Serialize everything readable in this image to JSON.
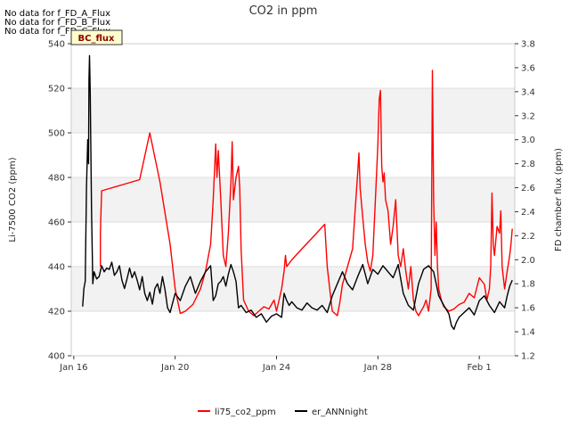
{
  "chart_data": {
    "type": "line",
    "title": "CO2 in ppm",
    "xlabel": "",
    "ylabel": "Li-7500 CO2 (ppm)",
    "y2label": "FD chamber flux (ppm)",
    "xlim": [
      15.9,
      33.4
    ],
    "ylim": [
      400,
      540
    ],
    "y2lim": [
      1.2,
      3.8
    ],
    "x_ticks": [
      16,
      20,
      24,
      28,
      32
    ],
    "x_tick_labels": [
      "Jan 16",
      "Jan 20",
      "Jan 24",
      "Jan 28",
      "Feb 1"
    ],
    "y_ticks": [
      400,
      420,
      440,
      460,
      480,
      500,
      520,
      540
    ],
    "y2_ticks": [
      1.2,
      1.4,
      1.6,
      1.8,
      2.0,
      2.2,
      2.4,
      2.6,
      2.8,
      3.0,
      3.2,
      3.4,
      3.6,
      3.8
    ],
    "y2_tick_labels": [
      "1.2",
      "1.4",
      "1.6",
      "1.8",
      "2.0",
      "2.2",
      "2.4",
      "2.6",
      "2.8",
      "3.0",
      "3.2",
      "3.4",
      "3.6",
      "3.8"
    ],
    "bands": [
      [
        420,
        440
      ],
      [
        460,
        480
      ],
      [
        500,
        520
      ]
    ],
    "no_data_notes": [
      "No data for f_FD_A_Flux",
      "No data for f_FD_B_Flux",
      "No data for f_FD_C_Flux"
    ],
    "badge_label": "BC_flux",
    "legend_position": "bottom-center",
    "series": [
      {
        "name": "li75_co2_ppm",
        "color": "#ff0000",
        "axis": "left",
        "points": [
          [
            17.05,
            440
          ],
          [
            17.05,
            455
          ],
          [
            17.1,
            474
          ],
          [
            18.0,
            477
          ],
          [
            18.6,
            479
          ],
          [
            19.0,
            500
          ],
          [
            19.4,
            478
          ],
          [
            19.8,
            450
          ],
          [
            20.0,
            430
          ],
          [
            20.2,
            419
          ],
          [
            20.4,
            420
          ],
          [
            20.7,
            423
          ],
          [
            21.0,
            430
          ],
          [
            21.2,
            438
          ],
          [
            21.4,
            450
          ],
          [
            21.5,
            470
          ],
          [
            21.6,
            495
          ],
          [
            21.65,
            480
          ],
          [
            21.7,
            492
          ],
          [
            21.8,
            470
          ],
          [
            21.9,
            445
          ],
          [
            22.0,
            440
          ],
          [
            22.1,
            455
          ],
          [
            22.2,
            478
          ],
          [
            22.25,
            496
          ],
          [
            22.3,
            470
          ],
          [
            22.4,
            480
          ],
          [
            22.5,
            485
          ],
          [
            22.55,
            475
          ],
          [
            22.6,
            448
          ],
          [
            22.7,
            425
          ],
          [
            22.9,
            420
          ],
          [
            23.1,
            418
          ],
          [
            23.3,
            420
          ],
          [
            23.5,
            422
          ],
          [
            23.7,
            421
          ],
          [
            23.9,
            425
          ],
          [
            24.0,
            420
          ],
          [
            24.2,
            430
          ],
          [
            24.3,
            438
          ],
          [
            24.35,
            445
          ],
          [
            24.4,
            440
          ],
          [
            24.6,
            443
          ],
          [
            25.0,
            448
          ],
          [
            25.5,
            454
          ],
          [
            25.9,
            459
          ],
          [
            26.0,
            440
          ],
          [
            26.2,
            420
          ],
          [
            26.4,
            418
          ],
          [
            26.5,
            424
          ],
          [
            26.6,
            432
          ],
          [
            26.8,
            440
          ],
          [
            27.0,
            448
          ],
          [
            27.1,
            465
          ],
          [
            27.2,
            482
          ],
          [
            27.25,
            491
          ],
          [
            27.3,
            475
          ],
          [
            27.4,
            462
          ],
          [
            27.5,
            450
          ],
          [
            27.6,
            442
          ],
          [
            27.7,
            438
          ],
          [
            27.8,
            445
          ],
          [
            27.9,
            470
          ],
          [
            28.0,
            495
          ],
          [
            28.05,
            515
          ],
          [
            28.1,
            519
          ],
          [
            28.15,
            485
          ],
          [
            28.2,
            478
          ],
          [
            28.25,
            482
          ],
          [
            28.3,
            470
          ],
          [
            28.4,
            465
          ],
          [
            28.5,
            450
          ],
          [
            28.6,
            458
          ],
          [
            28.7,
            470
          ],
          [
            28.8,
            445
          ],
          [
            28.9,
            440
          ],
          [
            29.0,
            448
          ],
          [
            29.1,
            438
          ],
          [
            29.2,
            430
          ],
          [
            29.3,
            440
          ],
          [
            29.4,
            425
          ],
          [
            29.5,
            420
          ],
          [
            29.6,
            418
          ],
          [
            29.7,
            420
          ],
          [
            29.8,
            422
          ],
          [
            29.9,
            425
          ],
          [
            30.0,
            420
          ],
          [
            30.1,
            430
          ],
          [
            30.15,
            528
          ],
          [
            30.2,
            470
          ],
          [
            30.25,
            445
          ],
          [
            30.3,
            460
          ],
          [
            30.35,
            440
          ],
          [
            30.4,
            430
          ],
          [
            30.5,
            425
          ],
          [
            30.6,
            422
          ],
          [
            30.8,
            420
          ],
          [
            31.0,
            421
          ],
          [
            31.2,
            423
          ],
          [
            31.4,
            424
          ],
          [
            31.6,
            428
          ],
          [
            31.8,
            426
          ],
          [
            32.0,
            435
          ],
          [
            32.2,
            432
          ],
          [
            32.3,
            425
          ],
          [
            32.4,
            430
          ],
          [
            32.45,
            440
          ],
          [
            32.5,
            473
          ],
          [
            32.55,
            450
          ],
          [
            32.6,
            445
          ],
          [
            32.7,
            458
          ],
          [
            32.8,
            455
          ],
          [
            32.85,
            465
          ],
          [
            32.9,
            440
          ],
          [
            33.0,
            430
          ],
          [
            33.1,
            438
          ],
          [
            33.2,
            445
          ],
          [
            33.25,
            450
          ],
          [
            33.3,
            457
          ]
        ]
      },
      {
        "name": "er_ANNnight",
        "color": "#000000",
        "axis": "right",
        "points": [
          [
            16.35,
            1.61
          ],
          [
            16.4,
            1.76
          ],
          [
            16.45,
            1.82
          ],
          [
            16.5,
            2.6
          ],
          [
            16.55,
            3.0
          ],
          [
            16.58,
            2.8
          ],
          [
            16.6,
            3.5
          ],
          [
            16.62,
            3.7
          ],
          [
            16.65,
            3.4
          ],
          [
            16.7,
            2.4
          ],
          [
            16.75,
            1.8
          ],
          [
            16.8,
            1.9
          ],
          [
            16.9,
            1.84
          ],
          [
            17.0,
            1.86
          ],
          [
            17.1,
            1.95
          ],
          [
            17.2,
            1.9
          ],
          [
            17.3,
            1.93
          ],
          [
            17.4,
            1.92
          ],
          [
            17.5,
            1.98
          ],
          [
            17.6,
            1.87
          ],
          [
            17.7,
            1.9
          ],
          [
            17.8,
            1.95
          ],
          [
            17.9,
            1.83
          ],
          [
            18.0,
            1.76
          ],
          [
            18.1,
            1.84
          ],
          [
            18.2,
            1.93
          ],
          [
            18.3,
            1.85
          ],
          [
            18.4,
            1.9
          ],
          [
            18.5,
            1.83
          ],
          [
            18.6,
            1.75
          ],
          [
            18.7,
            1.86
          ],
          [
            18.8,
            1.72
          ],
          [
            18.9,
            1.66
          ],
          [
            19.0,
            1.73
          ],
          [
            19.1,
            1.63
          ],
          [
            19.2,
            1.76
          ],
          [
            19.3,
            1.8
          ],
          [
            19.4,
            1.72
          ],
          [
            19.5,
            1.86
          ],
          [
            19.6,
            1.75
          ],
          [
            19.7,
            1.6
          ],
          [
            19.8,
            1.56
          ],
          [
            19.9,
            1.64
          ],
          [
            20.0,
            1.72
          ],
          [
            20.2,
            1.66
          ],
          [
            20.4,
            1.78
          ],
          [
            20.6,
            1.86
          ],
          [
            20.8,
            1.72
          ],
          [
            21.0,
            1.82
          ],
          [
            21.2,
            1.9
          ],
          [
            21.4,
            1.95
          ],
          [
            21.5,
            1.66
          ],
          [
            21.6,
            1.7
          ],
          [
            21.7,
            1.8
          ],
          [
            21.8,
            1.82
          ],
          [
            21.9,
            1.86
          ],
          [
            22.0,
            1.78
          ],
          [
            22.1,
            1.88
          ],
          [
            22.2,
            1.96
          ],
          [
            22.3,
            1.9
          ],
          [
            22.4,
            1.82
          ],
          [
            22.5,
            1.6
          ],
          [
            22.6,
            1.62
          ],
          [
            22.8,
            1.56
          ],
          [
            23.0,
            1.58
          ],
          [
            23.2,
            1.52
          ],
          [
            23.4,
            1.55
          ],
          [
            23.6,
            1.48
          ],
          [
            23.8,
            1.53
          ],
          [
            24.0,
            1.55
          ],
          [
            24.2,
            1.52
          ],
          [
            24.3,
            1.72
          ],
          [
            24.4,
            1.66
          ],
          [
            24.5,
            1.62
          ],
          [
            24.6,
            1.65
          ],
          [
            24.8,
            1.6
          ],
          [
            25.0,
            1.58
          ],
          [
            25.2,
            1.64
          ],
          [
            25.4,
            1.6
          ],
          [
            25.6,
            1.58
          ],
          [
            25.8,
            1.62
          ],
          [
            26.0,
            1.56
          ],
          [
            26.2,
            1.7
          ],
          [
            26.4,
            1.8
          ],
          [
            26.6,
            1.9
          ],
          [
            26.8,
            1.8
          ],
          [
            27.0,
            1.75
          ],
          [
            27.2,
            1.86
          ],
          [
            27.4,
            1.96
          ],
          [
            27.6,
            1.8
          ],
          [
            27.8,
            1.92
          ],
          [
            28.0,
            1.88
          ],
          [
            28.2,
            1.95
          ],
          [
            28.4,
            1.9
          ],
          [
            28.6,
            1.85
          ],
          [
            28.8,
            1.96
          ],
          [
            29.0,
            1.72
          ],
          [
            29.2,
            1.62
          ],
          [
            29.4,
            1.58
          ],
          [
            29.6,
            1.8
          ],
          [
            29.8,
            1.92
          ],
          [
            30.0,
            1.95
          ],
          [
            30.2,
            1.9
          ],
          [
            30.4,
            1.7
          ],
          [
            30.6,
            1.62
          ],
          [
            30.8,
            1.55
          ],
          [
            30.9,
            1.45
          ],
          [
            31.0,
            1.42
          ],
          [
            31.1,
            1.48
          ],
          [
            31.2,
            1.52
          ],
          [
            31.4,
            1.56
          ],
          [
            31.6,
            1.6
          ],
          [
            31.8,
            1.54
          ],
          [
            32.0,
            1.66
          ],
          [
            32.2,
            1.7
          ],
          [
            32.4,
            1.62
          ],
          [
            32.6,
            1.56
          ],
          [
            32.8,
            1.65
          ],
          [
            33.0,
            1.6
          ],
          [
            33.1,
            1.7
          ],
          [
            33.2,
            1.78
          ],
          [
            33.3,
            1.83
          ]
        ]
      }
    ]
  }
}
